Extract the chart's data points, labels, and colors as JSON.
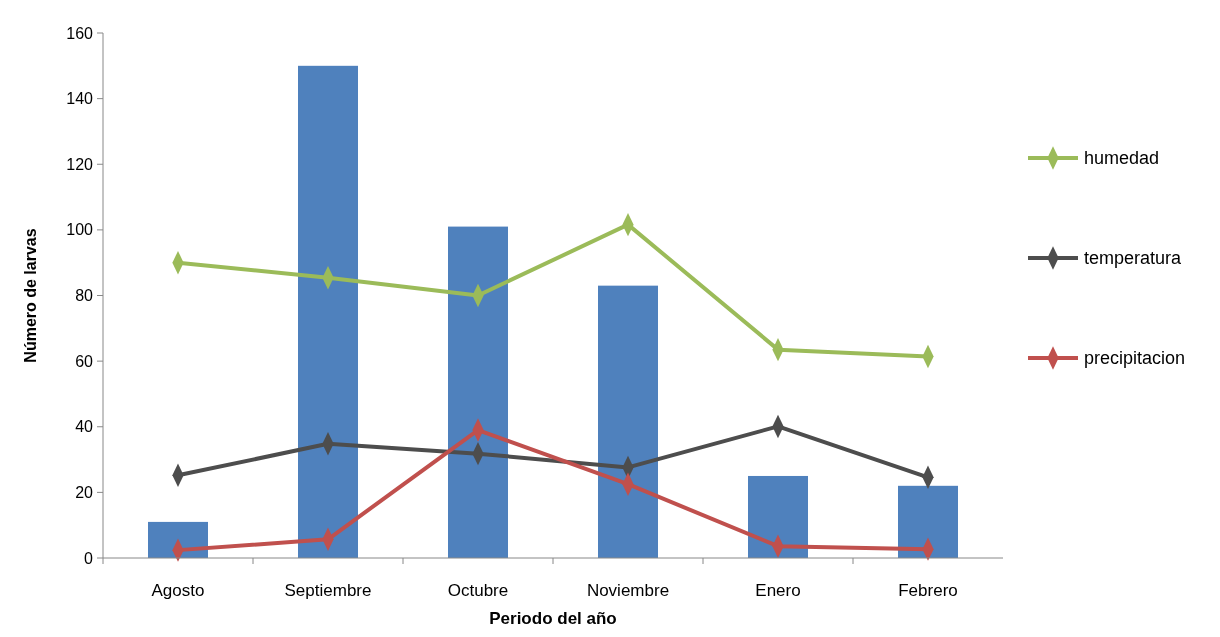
{
  "chart_data": {
    "type": "bar",
    "xlabel": "Periodo del año",
    "ylabel": "Número de larvas",
    "categories": [
      "Agosto",
      "Septiembre",
      "Octubre",
      "Noviembre",
      "Enero",
      "Febrero"
    ],
    "series": [
      {
        "color": "#4f81bd",
        "values": [
          11,
          150,
          101,
          83,
          25,
          22
        ]
      },
      {
        "type": "line",
        "name": "humedad",
        "color": "#9bbb59",
        "values": [
          90,
          85.4,
          80,
          101.6,
          63.5,
          61.4
        ]
      },
      {
        "type": "line",
        "name": "temperatura",
        "color": "#4d4d4d",
        "values": [
          25.2,
          34.8,
          31.8,
          27.6,
          40.1,
          24.6
        ]
      },
      {
        "type": "line",
        "name": "precipitacion",
        "color": "#c0504d",
        "values": [
          2.4,
          5.7,
          39,
          22.5,
          3.6,
          2.7
        ]
      }
    ],
    "ylim": [
      0,
      160
    ],
    "yticks": [
      0,
      20,
      40,
      60,
      80,
      100,
      120,
      140,
      160
    ],
    "grid": false,
    "legend": "right",
    "marker": "diamond",
    "line_style": "solid"
  }
}
